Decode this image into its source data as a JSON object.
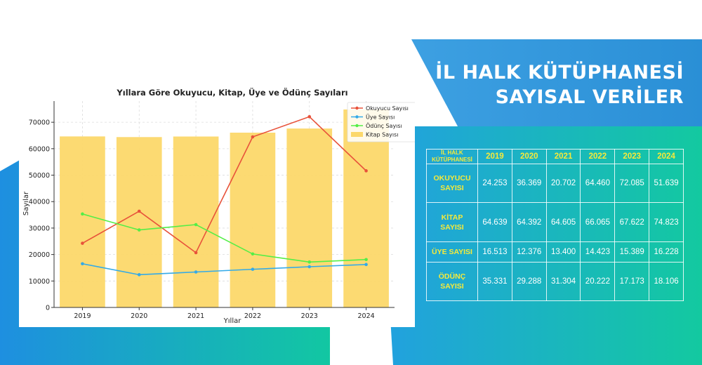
{
  "banner": {
    "title_line1": "İL HALK KÜTÜPHANESİ",
    "title_line2": "SAYISAL VERİLER"
  },
  "colors": {
    "bar": "#fcd86a",
    "okuyucu": "#e8523a",
    "uye": "#33aae8",
    "odunc": "#54ee46",
    "banner_blue": "#2a8fd6",
    "table_teal_start": "#22a0e0",
    "table_teal_end": "#13c7a0",
    "header_yellow": "#f6ea3a"
  },
  "chart_data": {
    "type": "bar",
    "title": "Yıllara Göre Okuyucu, Kitap, Üye ve Ödünç Sayıları",
    "xlabel": "Yıllar",
    "ylabel": "Sayılar",
    "categories": [
      "2019",
      "2020",
      "2021",
      "2022",
      "2023",
      "2024"
    ],
    "ylim": [
      0,
      78000
    ],
    "yticks": [
      0,
      10000,
      20000,
      30000,
      40000,
      50000,
      60000,
      70000
    ],
    "grid": true,
    "legend_position": "top-right",
    "bars": {
      "name": "Kitap Sayısı",
      "values": [
        64639,
        64392,
        64605,
        66065,
        67622,
        74823
      ]
    },
    "lines": [
      {
        "name": "Okuyucu Sayısı",
        "color_key": "okuyucu",
        "values": [
          24253,
          36369,
          20702,
          64460,
          72085,
          51639
        ]
      },
      {
        "name": "Üye Sayısı",
        "color_key": "uye",
        "values": [
          16513,
          12376,
          13400,
          14423,
          15389,
          16228
        ]
      },
      {
        "name": "Ödünç Sayısı",
        "color_key": "odunc",
        "values": [
          35331,
          29288,
          31304,
          20222,
          17173,
          18106
        ]
      }
    ],
    "legend_order": [
      "Okuyucu Sayısı",
      "Üye Sayısı",
      "Ödünç Sayısı",
      "Kitap Sayısı"
    ]
  },
  "table": {
    "corner_line1": "İL HALK",
    "corner_line2": "KÜTÜPHANESİ",
    "years": [
      "2019",
      "2020",
      "2021",
      "2022",
      "2023",
      "2024"
    ],
    "rows": [
      {
        "label_line1": "OKUYUCU",
        "label_line2": "SAYISI",
        "values": [
          "24.253",
          "36.369",
          "20.702",
          "64.460",
          "72.085",
          "51.639"
        ]
      },
      {
        "label_line1": "KİTAP",
        "label_line2": "SAYISI",
        "values": [
          "64.639",
          "64.392",
          "64.605",
          "66.065",
          "67.622",
          "74.823"
        ]
      },
      {
        "label_line1": "ÜYE SAYISI",
        "label_line2": "",
        "values": [
          "16.513",
          "12.376",
          "13.400",
          "14.423",
          "15.389",
          "16.228"
        ]
      },
      {
        "label_line1": "ÖDÜNÇ",
        "label_line2": "SAYISI",
        "values": [
          "35.331",
          "29.288",
          "31.304",
          "20.222",
          "17.173",
          "18.106"
        ]
      }
    ]
  }
}
